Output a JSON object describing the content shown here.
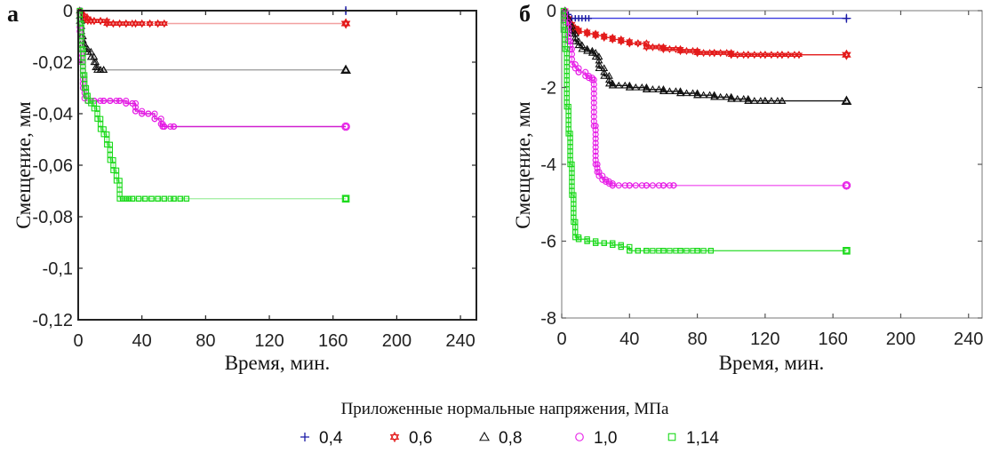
{
  "legend": {
    "title": "Приложенные нормальные напряжения, МПа",
    "entries": [
      {
        "label": "0,4",
        "marker": "plus",
        "color": "#1a1aa6"
      },
      {
        "label": "0,6",
        "marker": "hexagram",
        "color": "#e31a1a"
      },
      {
        "label": "0,8",
        "marker": "triangle",
        "color": "#111111"
      },
      {
        "label": "1,0",
        "marker": "circle",
        "color": "#e619e6"
      },
      {
        "label": "1,14",
        "marker": "square",
        "color": "#19d919"
      }
    ]
  },
  "chart_data": [
    {
      "type": "line",
      "panel_label": "а",
      "title": "",
      "xlabel": "Время, мин.",
      "ylabel": "Смещение, мм",
      "xlim": [
        0,
        250
      ],
      "ylim": [
        -0.12,
        0
      ],
      "xticks": [
        0,
        40,
        80,
        120,
        160,
        200,
        240
      ],
      "xtick_labels": [
        "0",
        "40",
        "80",
        "120",
        "160",
        "200",
        "240"
      ],
      "yticks": [
        0,
        -0.02,
        -0.04,
        -0.06,
        -0.08,
        -0.1,
        -0.12
      ],
      "ytick_labels": [
        "0",
        "-0,02",
        "-0,04",
        "-0,06",
        "-0,08",
        "-0,1",
        "-0,12"
      ],
      "grid": false,
      "series": [
        {
          "name": "0,4",
          "color": "#1a1aa6",
          "line_color": "#1a1aa6",
          "x": [
            0,
            1,
            2,
            168
          ],
          "y": [
            0,
            0,
            0,
            0
          ]
        },
        {
          "name": "0,6",
          "color": "#e31a1a",
          "line_color": "#f2a0a0",
          "x": [
            0,
            1,
            2,
            4,
            6,
            8,
            10,
            14,
            18,
            22,
            26,
            30,
            36,
            40,
            45,
            50,
            54,
            168
          ],
          "y": [
            0,
            -0.001,
            -0.002,
            -0.003,
            -0.004,
            -0.004,
            -0.004,
            -0.004,
            -0.005,
            -0.005,
            -0.005,
            -0.005,
            -0.005,
            -0.005,
            -0.005,
            -0.005,
            -0.005,
            -0.005
          ]
        },
        {
          "name": "0,8",
          "color": "#111111",
          "line_color": "#a0a0a0",
          "x": [
            0,
            1,
            2,
            3,
            4,
            6,
            8,
            10,
            11,
            12,
            14,
            16,
            168
          ],
          "y": [
            0,
            -0.004,
            -0.01,
            -0.013,
            -0.015,
            -0.016,
            -0.018,
            -0.02,
            -0.022,
            -0.023,
            -0.023,
            -0.023,
            -0.023
          ]
        },
        {
          "name": "1,0",
          "color": "#e619e6",
          "line_color": "#d020d0",
          "x": [
            0,
            1,
            2,
            3,
            4,
            6,
            10,
            16,
            20,
            26,
            30,
            34,
            36,
            40,
            44,
            48,
            52,
            53,
            54,
            60,
            168
          ],
          "y": [
            0,
            -0.008,
            -0.02,
            -0.03,
            -0.034,
            -0.035,
            -0.035,
            -0.035,
            -0.035,
            -0.035,
            -0.036,
            -0.036,
            -0.039,
            -0.04,
            -0.04,
            -0.042,
            -0.044,
            -0.045,
            -0.045,
            -0.045,
            -0.045
          ]
        },
        {
          "name": "1,14",
          "color": "#19d919",
          "line_color": "#a8f0a8",
          "x": [
            0,
            1,
            2,
            3,
            4,
            5,
            6,
            8,
            10,
            12,
            14,
            16,
            18,
            20,
            22,
            24,
            26,
            28,
            30,
            32,
            34,
            38,
            42,
            46,
            50,
            54,
            60,
            64,
            68,
            168
          ],
          "y": [
            0,
            -0.005,
            -0.015,
            -0.025,
            -0.03,
            -0.033,
            -0.035,
            -0.036,
            -0.038,
            -0.042,
            -0.046,
            -0.048,
            -0.052,
            -0.058,
            -0.062,
            -0.066,
            -0.073,
            -0.073,
            -0.073,
            -0.073,
            -0.073,
            -0.073,
            -0.073,
            -0.073,
            -0.073,
            -0.073,
            -0.073,
            -0.073,
            -0.073,
            -0.073
          ]
        }
      ]
    },
    {
      "type": "line",
      "panel_label": "б",
      "title": "",
      "xlabel": "Время, мин.",
      "ylabel": "Смещение, мм",
      "xlim": [
        0,
        248
      ],
      "ylim": [
        -8,
        0
      ],
      "xticks": [
        0,
        40,
        80,
        120,
        160,
        200,
        240
      ],
      "xtick_labels": [
        "0",
        "40",
        "80",
        "120",
        "160",
        "200",
        "240"
      ],
      "yticks": [
        0,
        -2,
        -4,
        -6,
        -8
      ],
      "ytick_labels": [
        "0",
        "-2",
        "-4",
        "-6",
        "-8"
      ],
      "grid": false,
      "series": [
        {
          "name": "0,4",
          "color": "#1a1aa6",
          "line_color": "#3a3ae0",
          "x": [
            0,
            2,
            4,
            6,
            8,
            10,
            12,
            14,
            16,
            168
          ],
          "y": [
            0,
            -0.1,
            -0.2,
            -0.2,
            -0.2,
            -0.2,
            -0.2,
            -0.2,
            -0.2,
            -0.2
          ]
        },
        {
          "name": "0,6",
          "color": "#e31a1a",
          "line_color": "#e31a1a",
          "x": [
            0,
            2,
            4,
            6,
            8,
            10,
            15,
            20,
            25,
            30,
            35,
            40,
            45,
            50,
            60,
            70,
            80,
            90,
            100,
            110,
            120,
            130,
            140,
            168
          ],
          "y": [
            0,
            -0.2,
            -0.35,
            -0.45,
            -0.5,
            -0.55,
            -0.6,
            -0.65,
            -0.7,
            -0.75,
            -0.8,
            -0.85,
            -0.85,
            -0.95,
            -1.0,
            -1.05,
            -1.1,
            -1.1,
            -1.15,
            -1.15,
            -1.15,
            -1.15,
            -1.15,
            -1.15
          ]
        },
        {
          "name": "0,8",
          "color": "#111111",
          "line_color": "#111111",
          "x": [
            0,
            2,
            4,
            6,
            8,
            10,
            12,
            15,
            18,
            20,
            22,
            25,
            28,
            30,
            40,
            50,
            60,
            70,
            80,
            90,
            100,
            110,
            120,
            130,
            168
          ],
          "y": [
            0,
            -0.2,
            -0.4,
            -0.6,
            -0.8,
            -0.9,
            -1.0,
            -1.05,
            -1.1,
            -1.2,
            -1.5,
            -1.7,
            -1.9,
            -1.95,
            -2.0,
            -2.05,
            -2.1,
            -2.15,
            -2.2,
            -2.25,
            -2.3,
            -2.35,
            -2.35,
            -2.35,
            -2.35
          ]
        },
        {
          "name": "1,0",
          "color": "#e619e6",
          "line_color": "#f060f0",
          "x": [
            0,
            2,
            4,
            5,
            6,
            8,
            10,
            14,
            16,
            18,
            19,
            20,
            21,
            22,
            24,
            26,
            28,
            30,
            40,
            50,
            60,
            66,
            168
          ],
          "y": [
            0,
            -0.3,
            -0.8,
            -1.0,
            -1.4,
            -1.5,
            -1.6,
            -1.7,
            -1.75,
            -1.8,
            -3.0,
            -4.0,
            -4.2,
            -4.3,
            -4.4,
            -4.45,
            -4.5,
            -4.55,
            -4.55,
            -4.55,
            -4.55,
            -4.55,
            -4.55
          ]
        },
        {
          "name": "1,14",
          "color": "#19d919",
          "line_color": "#40e040",
          "x": [
            0,
            1,
            2,
            3,
            4,
            5,
            6,
            7,
            8,
            10,
            15,
            20,
            25,
            30,
            35,
            40,
            45,
            50,
            60,
            70,
            80,
            88,
            168
          ],
          "y": [
            0,
            -0.5,
            -1.0,
            -2.5,
            -3.2,
            -4.0,
            -4.8,
            -5.5,
            -5.9,
            -5.95,
            -6.0,
            -6.05,
            -6.05,
            -6.1,
            -6.15,
            -6.25,
            -6.25,
            -6.25,
            -6.25,
            -6.25,
            -6.25,
            -6.25,
            -6.25
          ]
        }
      ]
    }
  ]
}
